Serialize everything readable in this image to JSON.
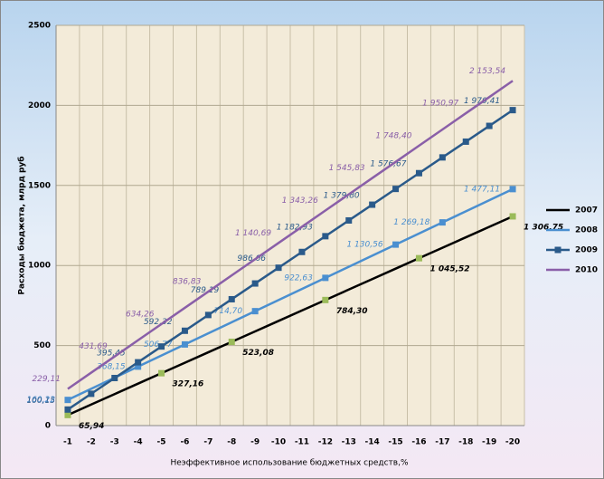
{
  "chart_data": {
    "type": "line",
    "ylabel": "Расходы бюджета, млрд руб",
    "xlabel": "Неэффективное использование  бюджетных средств,%",
    "categories": [
      "-1",
      "-2",
      "-3",
      "-4",
      "-5",
      "-6",
      "-7",
      "-8",
      "-9",
      "-10",
      "-11",
      "-12",
      "-13",
      "-14",
      "-15",
      "-16",
      "-17",
      "-18",
      "-19",
      "-20"
    ],
    "ylim": [
      0,
      2500
    ],
    "yticks": [
      0,
      500,
      1000,
      1500,
      2000,
      2500
    ],
    "grid": true,
    "legend": "right",
    "series": [
      {
        "name": "2007",
        "color": "#000000",
        "marker_color": "#9bbb59",
        "values": [
          65.94,
          131.25,
          196.55,
          261.86,
          327.16,
          392.47,
          457.77,
          523.08,
          588.39,
          653.69,
          719.0,
          784.3,
          849.61,
          914.92,
          980.22,
          1045.52,
          1110.83,
          1176.14,
          1241.45,
          1306.75
        ],
        "value_labels": [
          "65,94",
          null,
          null,
          null,
          "327,16",
          null,
          null,
          "523,08",
          null,
          null,
          null,
          "784,30",
          null,
          null,
          null,
          "1 045,52",
          null,
          null,
          null,
          "1 306,75"
        ]
      },
      {
        "name": "2008",
        "color": "#4a8fd0",
        "marker_color": "#4a8fd0",
        "values": [
          160.22,
          229.53,
          298.84,
          368.15,
          437.46,
          506.77,
          576.08,
          645.39,
          714.7,
          784.01,
          853.32,
          922.63,
          991.94,
          1061.25,
          1130.56,
          1199.87,
          1269.18,
          1338.49,
          1407.8,
          1477.11
        ],
        "value_labels": [
          "160,22",
          null,
          null,
          "368,15",
          null,
          "506,77",
          null,
          null,
          "714,70",
          null,
          null,
          "922,63",
          null,
          null,
          "1 130,56",
          null,
          "1 269,18",
          null,
          null,
          "1 477,11"
        ]
      },
      {
        "name": "2009",
        "color": "#2a5a8a",
        "marker_color": "#2a5a8a",
        "values": [
          100.15,
          198.59,
          297.02,
          395.45,
          493.89,
          592.32,
          690.76,
          789.19,
          887.63,
          986.06,
          1084.5,
          1182.93,
          1281.37,
          1379.8,
          1478.24,
          1576.67,
          1675.11,
          1773.54,
          1871.98,
          1970.41
        ],
        "value_labels": [
          "100,15",
          null,
          null,
          "395,45",
          null,
          "592,32",
          null,
          "789,19",
          null,
          "986,06",
          null,
          "1 182,93",
          null,
          "1 379,80",
          null,
          "1 576,67",
          null,
          null,
          null,
          "1 970,41"
        ]
      },
      {
        "name": "2010",
        "color": "#8a5fa8",
        "values": [
          229.11,
          330.4,
          431.69,
          532.97,
          634.26,
          735.54,
          836.83,
          938.11,
          1039.4,
          1140.69,
          1241.97,
          1343.26,
          1444.54,
          1545.83,
          1647.11,
          1748.4,
          1849.69,
          1950.97,
          2052.26,
          2153.54
        ],
        "value_labels": [
          "229,11",
          null,
          "431,69",
          null,
          "634,26",
          null,
          "836,83",
          null,
          null,
          "1 140,69",
          null,
          "1 343,26",
          null,
          "1 545,83",
          null,
          "1 748,40",
          null,
          "1 950,97",
          null,
          "2 153,54"
        ]
      }
    ]
  }
}
